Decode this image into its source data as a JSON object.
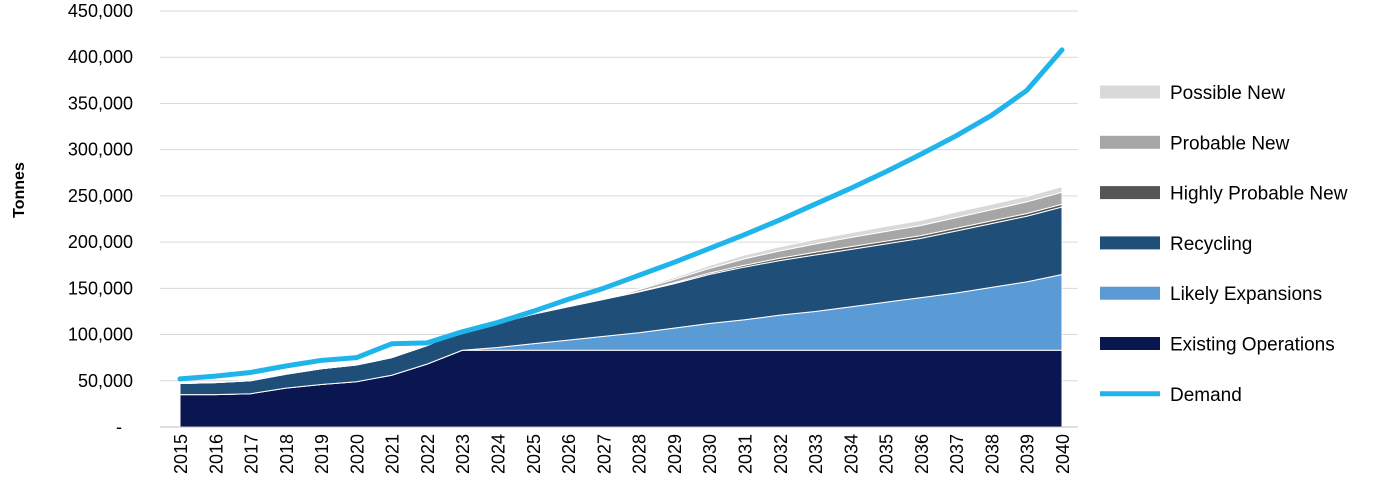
{
  "chart_data": {
    "type": "area",
    "ylabel": "Tonnes",
    "xlabel": "",
    "title": "",
    "ylim": [
      0,
      450000
    ],
    "y_ticks": [
      {
        "value": 0,
        "label": "-"
      },
      {
        "value": 50000,
        "label": "50,000"
      },
      {
        "value": 100000,
        "label": "100,000"
      },
      {
        "value": 150000,
        "label": "150,000"
      },
      {
        "value": 200000,
        "label": "200,000"
      },
      {
        "value": 250000,
        "label": "250,000"
      },
      {
        "value": 300000,
        "label": "300,000"
      },
      {
        "value": 350000,
        "label": "350,000"
      },
      {
        "value": 400000,
        "label": "400,000"
      },
      {
        "value": 450000,
        "label": "450,000"
      }
    ],
    "grid": true,
    "legend_position": "right",
    "categories": [
      "2015",
      "2016",
      "2017",
      "2018",
      "2019",
      "2020",
      "2021",
      "2022",
      "2023",
      "2024",
      "2025",
      "2026",
      "2027",
      "2028",
      "2029",
      "2030",
      "2031",
      "2032",
      "2033",
      "2034",
      "2035",
      "2036",
      "2037",
      "2038",
      "2039",
      "2040"
    ],
    "stack_series": [
      {
        "name": "Existing Operations",
        "color": "#0a1650",
        "values": [
          35000,
          35000,
          36000,
          42000,
          46000,
          49000,
          56000,
          68000,
          83000,
          83000,
          83000,
          83000,
          83000,
          83000,
          83000,
          83000,
          83000,
          83000,
          83000,
          83000,
          83000,
          83000,
          83000,
          83000,
          83000,
          83000
        ]
      },
      {
        "name": "Likely Expansions",
        "color": "#5b9bd5",
        "values": [
          0,
          0,
          0,
          0,
          0,
          0,
          0,
          0,
          0,
          3000,
          7000,
          11000,
          15000,
          19000,
          24000,
          29000,
          33000,
          38000,
          42000,
          47000,
          52000,
          57000,
          62000,
          68000,
          74000,
          82000
        ]
      },
      {
        "name": "Recycling",
        "color": "#1f4e79",
        "values": [
          12000,
          13000,
          14000,
          15000,
          17000,
          18000,
          19000,
          20000,
          22000,
          26000,
          32000,
          36000,
          40000,
          44000,
          48000,
          53000,
          57000,
          59000,
          61000,
          62000,
          63000,
          64000,
          67000,
          69000,
          71000,
          73000
        ]
      },
      {
        "name": "Highly Probable New",
        "color": "#555555",
        "values": [
          0,
          0,
          0,
          0,
          0,
          0,
          0,
          0,
          0,
          0,
          0,
          0,
          0,
          500,
          1000,
          1500,
          2000,
          2500,
          3000,
          3000,
          3000,
          3000,
          3000,
          3000,
          3000,
          3000
        ]
      },
      {
        "name": "Probable New",
        "color": "#a6a6a6",
        "values": [
          0,
          0,
          0,
          0,
          0,
          0,
          0,
          0,
          0,
          0,
          0,
          0,
          0,
          2000,
          3500,
          5000,
          7000,
          8000,
          9000,
          10000,
          10500,
          11000,
          11500,
          12000,
          12500,
          13000
        ]
      },
      {
        "name": "Possible New",
        "color": "#d9d9d9",
        "values": [
          0,
          0,
          0,
          0,
          0,
          0,
          0,
          0,
          0,
          0,
          0,
          0,
          0,
          1000,
          2000,
          3000,
          4000,
          4500,
          5000,
          5000,
          5500,
          5500,
          6000,
          6000,
          6000,
          6000
        ]
      }
    ],
    "line_series": {
      "name": "Demand",
      "color": "#1fb5ea",
      "values": [
        52000,
        55000,
        59000,
        66000,
        72000,
        75000,
        90000,
        91000,
        103000,
        113000,
        125000,
        138000,
        150000,
        164000,
        178000,
        193000,
        208000,
        224000,
        241000,
        258000,
        276000,
        295000,
        315000,
        337000,
        364000,
        408000
      ]
    },
    "legend_order": [
      "Possible New",
      "Probable New",
      "Highly Probable New",
      "Recycling",
      "Likely Expansions",
      "Existing Operations",
      "Demand"
    ]
  }
}
